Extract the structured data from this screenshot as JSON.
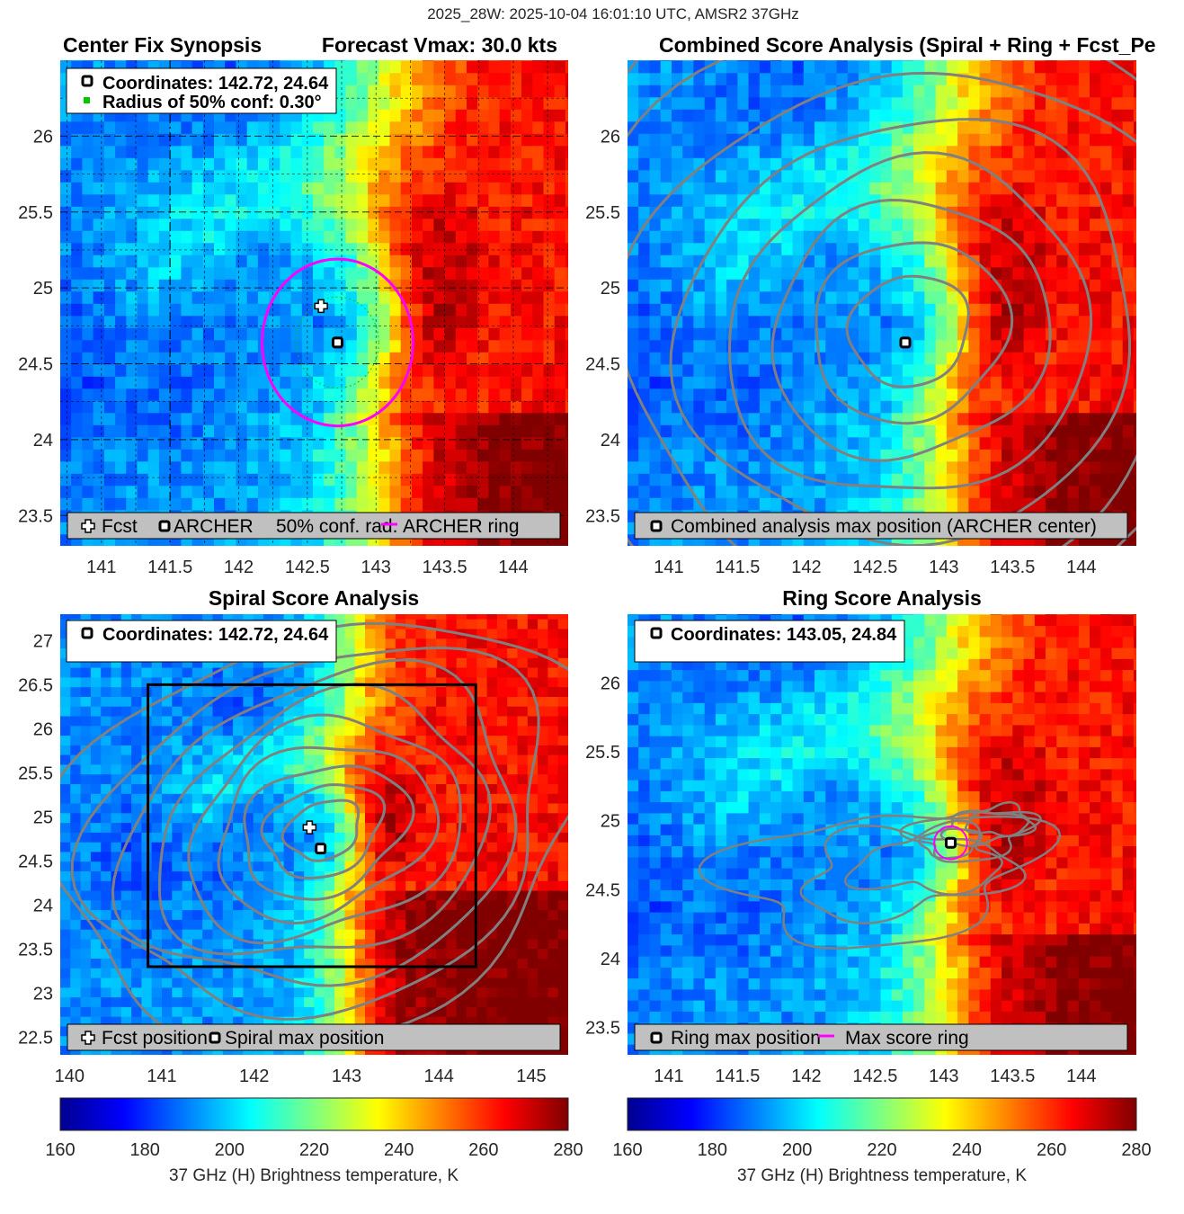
{
  "figure": {
    "suptitle": "2025_28W: 2025-10-04 16:01:10 UTC, AMSR2 37GHz"
  },
  "colors": {
    "contour": "#808080",
    "ring": "#ff00ff",
    "conf_circle": "#00c800",
    "grid": "#000000",
    "legend_bg": "#c0c0c0"
  },
  "chart_data": [
    {
      "id": "center-fix",
      "type": "heatmap",
      "title_left": "Center Fix Synopsis",
      "title_right": "Forecast Vmax: 30.0 kts",
      "xlim": [
        140.7,
        144.4
      ],
      "ylim": [
        23.3,
        26.5
      ],
      "xticks": [
        141,
        141.5,
        142,
        142.5,
        143,
        143.5,
        144
      ],
      "yticks": [
        23.5,
        24,
        24.5,
        25,
        25.5,
        26
      ],
      "grid": true,
      "info_lines": [
        {
          "text": "Coordinates: 142.72, 24.64",
          "marker": "square"
        },
        {
          "text": "Radius of 50% conf: 0.30°",
          "marker": "green-dot"
        }
      ],
      "legend": [
        {
          "marker": "plus",
          "label": "Fcst"
        },
        {
          "marker": "square",
          "label": "ARCHER"
        },
        {
          "marker": "dotted-circle",
          "label": "50% conf. rad."
        },
        {
          "marker": "magenta-line",
          "label": "ARCHER ring"
        }
      ],
      "archer_center": [
        142.72,
        24.64
      ],
      "forecast_position": [
        142.6,
        24.88
      ],
      "conf_radius_deg": 0.3,
      "ring_radius_deg": 0.55
    },
    {
      "id": "combined",
      "type": "heatmap",
      "title": "Combined Score Analysis (Spiral + Ring + Fcst_Pe",
      "xlim": [
        140.7,
        144.4
      ],
      "ylim": [
        23.3,
        26.5
      ],
      "xticks": [
        141,
        141.5,
        142,
        142.5,
        143,
        143.5,
        144
      ],
      "yticks": [
        23.5,
        24,
        24.5,
        25,
        25.5,
        26
      ],
      "grid": false,
      "legend": [
        {
          "marker": "square",
          "label": "Combined analysis max position (ARCHER center)"
        }
      ],
      "max_position": [
        142.72,
        24.64
      ]
    },
    {
      "id": "spiral",
      "type": "heatmap",
      "title": "Spiral Score Analysis",
      "xlim": [
        139.9,
        145.4
      ],
      "ylim": [
        22.3,
        27.3
      ],
      "xticks": [
        140,
        141,
        142,
        143,
        144,
        145
      ],
      "yticks": [
        22.5,
        23,
        23.5,
        24,
        24.5,
        25,
        25.5,
        26,
        26.5,
        27
      ],
      "grid": false,
      "info_lines": [
        {
          "text": "Coordinates: 142.72, 24.64",
          "marker": "square"
        }
      ],
      "legend": [
        {
          "marker": "plus",
          "label": "Fcst position"
        },
        {
          "marker": "square",
          "label": "Spiral max position"
        }
      ],
      "max_position": [
        142.72,
        24.64
      ],
      "forecast_position": [
        142.6,
        24.88
      ],
      "search_box": {
        "lon": [
          140.85,
          144.4
        ],
        "lat": [
          23.3,
          26.5
        ]
      }
    },
    {
      "id": "ring",
      "type": "heatmap",
      "title": "Ring Score Analysis",
      "xlim": [
        140.7,
        144.4
      ],
      "ylim": [
        23.3,
        26.5
      ],
      "xticks": [
        141,
        141.5,
        142,
        142.5,
        143,
        143.5,
        144
      ],
      "yticks": [
        23.5,
        24,
        24.5,
        25,
        25.5,
        26
      ],
      "grid": false,
      "info_lines": [
        {
          "text": "Coordinates: 143.05, 24.84",
          "marker": "square"
        }
      ],
      "legend": [
        {
          "marker": "square",
          "label": "Ring max position"
        },
        {
          "marker": "magenta-line",
          "label": "Max score ring"
        }
      ],
      "max_position": [
        143.05,
        24.84
      ],
      "ring_radius_deg": 0.12
    }
  ],
  "colorbars": [
    {
      "label": "37 GHz (H) Brightness temperature, K",
      "range": [
        160,
        280
      ],
      "ticks": [
        160,
        180,
        200,
        220,
        240,
        260,
        280
      ]
    },
    {
      "label": "37 GHz (H) Brightness temperature, K",
      "range": [
        160,
        280
      ],
      "ticks": [
        160,
        180,
        200,
        220,
        240,
        260,
        280
      ]
    }
  ]
}
